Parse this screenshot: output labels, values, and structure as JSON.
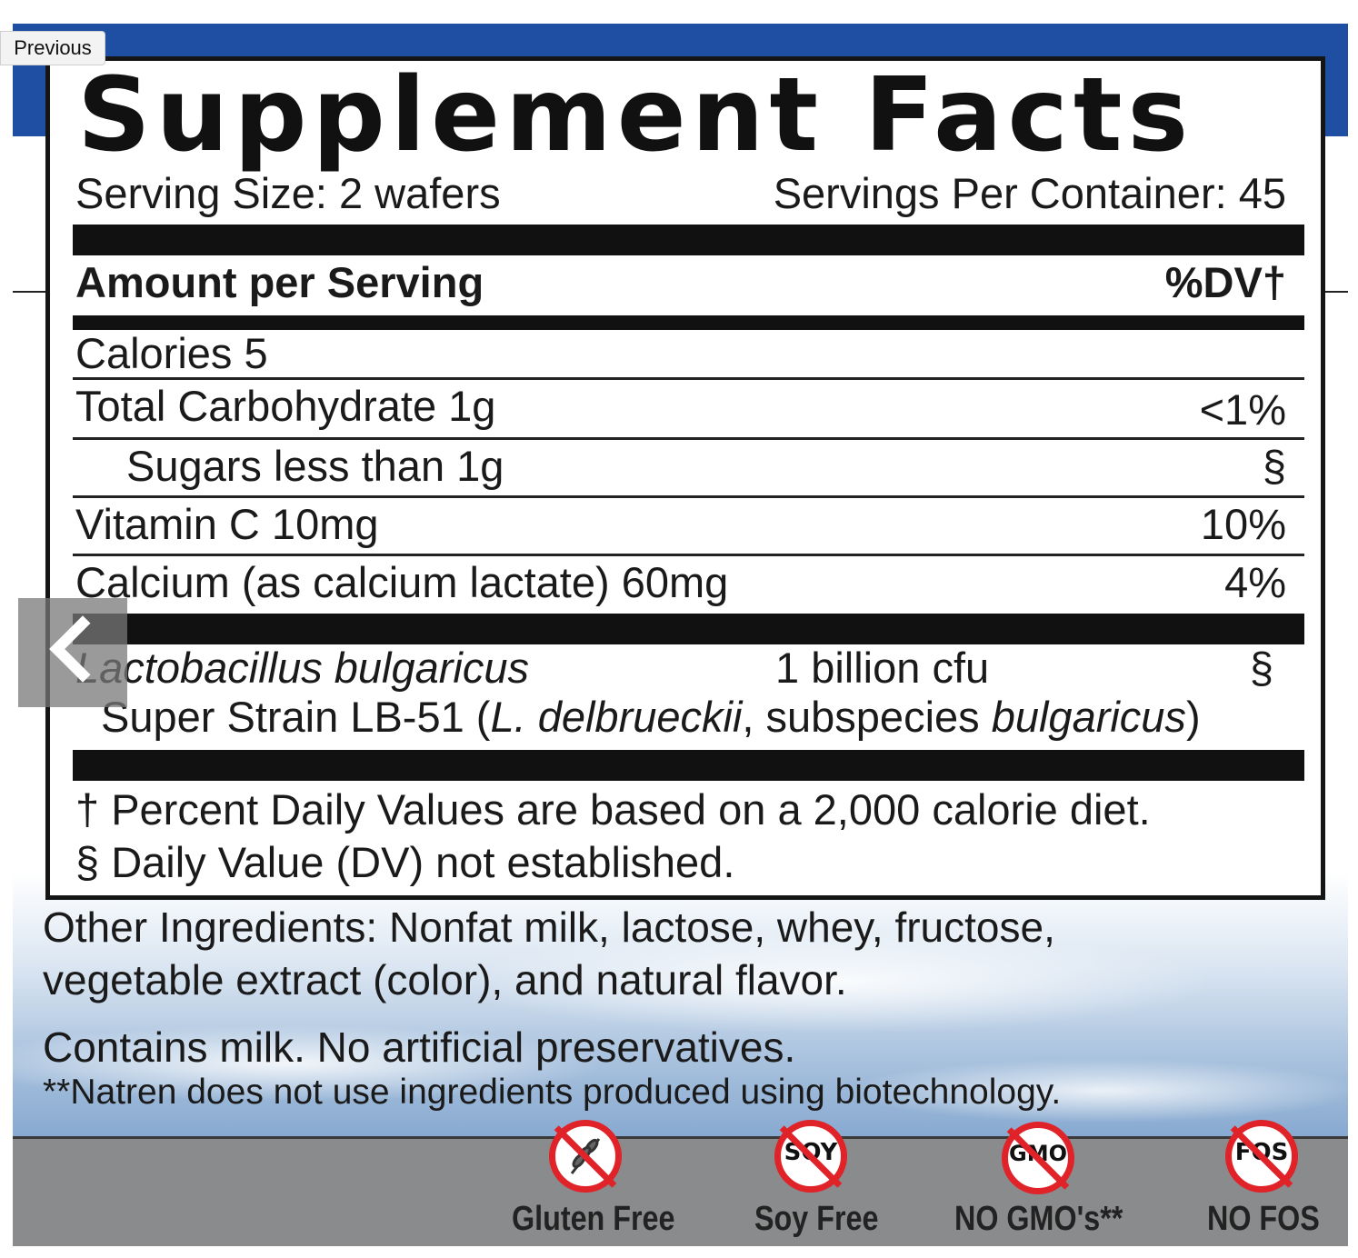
{
  "nav": {
    "previous_label": "Previous",
    "arrow_icon": "chevron-left-icon"
  },
  "label": {
    "title": "Supplement Facts",
    "serving_size": "Serving Size: 2 wafers",
    "servings_per_container": "Servings Per Container: 45",
    "amount_header": "Amount per Serving",
    "dv_header": "%DV†",
    "rows": [
      {
        "name": "Calories 5",
        "dv": ""
      },
      {
        "name": "Total Carbohydrate 1g",
        "dv": "<1%"
      },
      {
        "name": "Sugars less than 1g",
        "dv": "§"
      },
      {
        "name": "Vitamin C 10mg",
        "dv": "10%"
      },
      {
        "name": "Calcium (as calcium lactate) 60mg",
        "dv": "4%"
      }
    ],
    "probiotic": {
      "name": "Lactobacillus bulgaricus",
      "amount": "1 billion cfu",
      "dv": "§",
      "strain_prefix": "Super Strain LB-51 (",
      "strain_species": "L. delbrueckii",
      "strain_mid": ", subspecies ",
      "strain_subspecies": "bulgaricus",
      "strain_suffix": ")"
    },
    "footnote_1": "† Percent Daily Values are based on a 2,000 calorie diet.",
    "footnote_2": "§ Daily Value (DV) not established."
  },
  "other_ingredients": {
    "line_1": "Other Ingredients: Nonfat milk, lactose, whey, fructose,",
    "line_2": "vegetable extract (color), and natural flavor.",
    "contains": "Contains milk. No artificial preservatives.",
    "biotech_note": "**Natren does not use ingredients produced using biotechnology."
  },
  "badges": [
    {
      "icon": "wheat-icon",
      "inner": "",
      "label": "Gluten Free"
    },
    {
      "icon": "soy-icon",
      "inner": "SOY",
      "label": "Soy Free"
    },
    {
      "icon": "gmo-icon",
      "inner": "GMO",
      "label": "NO GMO's**"
    },
    {
      "icon": "fos-icon",
      "inner": "FOS",
      "label": "NO FOS"
    }
  ],
  "colors": {
    "brand_blue": "#1f4fa3",
    "badge_red": "#e02229",
    "band_gray": "#8a8b8d"
  }
}
